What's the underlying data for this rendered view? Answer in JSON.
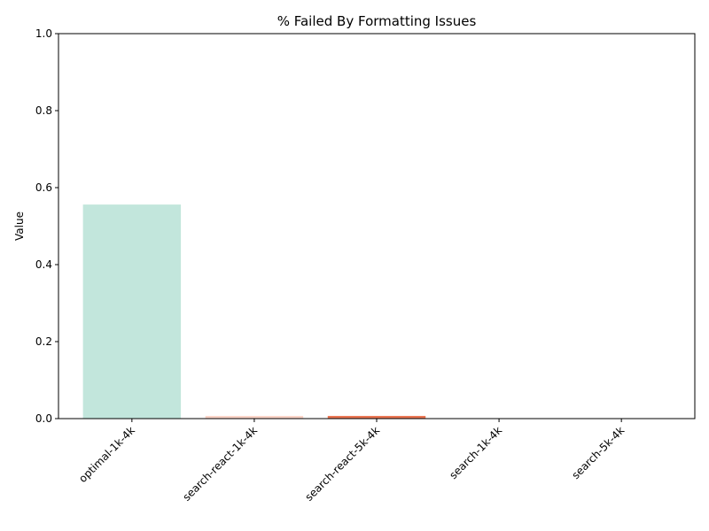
{
  "chart_data": {
    "type": "bar",
    "title": "% Failed By Formatting Issues",
    "xlabel": "",
    "ylabel": "Value",
    "ylim": [
      0,
      1
    ],
    "yticks": [
      0.0,
      0.2,
      0.4,
      0.6,
      0.8,
      1.0
    ],
    "ytick_labels": [
      "0.0",
      "0.2",
      "0.4",
      "0.6",
      "0.8",
      "1.0"
    ],
    "grid": false,
    "categories": [
      "optimal-1k-4k",
      "search-react-1k-4k",
      "search-react-5k-4k",
      "search-1k-4k",
      "search-5k-4k"
    ],
    "values": [
      0.556,
      0.007,
      0.007,
      0.0,
      0.0
    ],
    "colors": [
      "#c2e6dc",
      "#fbd5c8",
      "#ea7552",
      "#b0b0b0",
      "#b0b0b0"
    ]
  }
}
